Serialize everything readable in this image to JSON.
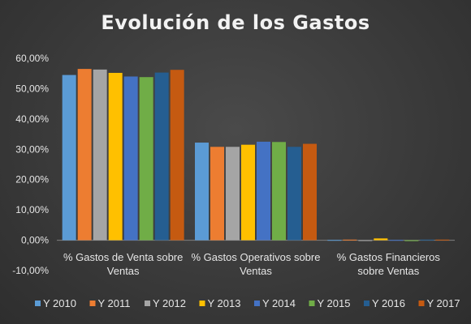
{
  "chart_data": {
    "type": "bar",
    "title": "Evolución de los Gastos",
    "xlabel": "",
    "ylabel": "",
    "ylim": [
      -10,
      60
    ],
    "yticks": [
      -10,
      0,
      10,
      20,
      30,
      40,
      50,
      60
    ],
    "ytick_labels": [
      "-10,00%",
      "0,00%",
      "10,00%",
      "20,00%",
      "30,00%",
      "40,00%",
      "50,00%",
      "60,00%"
    ],
    "grid": false,
    "legend_position": "bottom",
    "categories": [
      [
        "%  Gastos de Venta sobre",
        "Ventas"
      ],
      [
        "%  Gastos Operativos sobre",
        "Ventas"
      ],
      [
        "%  Gastos Financieros",
        "sobre Ventas"
      ]
    ],
    "series": [
      {
        "name": "Y 2010",
        "color": "#5b9bd5",
        "values": [
          54.5,
          32.2,
          0.1
        ]
      },
      {
        "name": "Y 2011",
        "color": "#ed7d31",
        "values": [
          56.5,
          30.8,
          0.2
        ]
      },
      {
        "name": "Y 2012",
        "color": "#a5a5a5",
        "values": [
          56.3,
          30.8,
          -0.1
        ]
      },
      {
        "name": "Y 2013",
        "color": "#ffc000",
        "values": [
          55.2,
          31.5,
          0.6
        ]
      },
      {
        "name": "Y 2014",
        "color": "#4472c4",
        "values": [
          54.0,
          32.5,
          0.1
        ]
      },
      {
        "name": "Y 2015",
        "color": "#70ad47",
        "values": [
          53.8,
          32.4,
          -0.3
        ]
      },
      {
        "name": "Y 2016",
        "color": "#255e91",
        "values": [
          55.3,
          30.8,
          0.2
        ]
      },
      {
        "name": "Y 2017",
        "color": "#c55a11",
        "values": [
          56.2,
          31.8,
          0.2
        ]
      }
    ]
  }
}
